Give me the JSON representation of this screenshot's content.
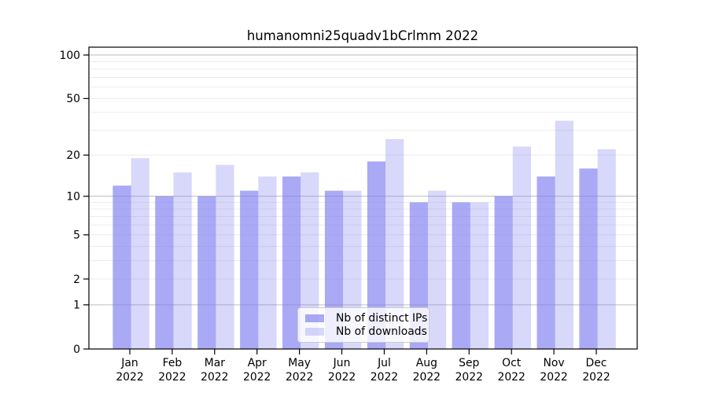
{
  "chart_data": {
    "type": "bar",
    "title": "humanomni25quadv1bCrlmm 2022",
    "categories": [
      "Jan",
      "Feb",
      "Mar",
      "Apr",
      "May",
      "Jun",
      "Jul",
      "Aug",
      "Sep",
      "Oct",
      "Nov",
      "Dec"
    ],
    "year": "2022",
    "series": [
      {
        "name": "Nb of distinct IPs",
        "values": [
          12,
          10,
          10,
          11,
          14,
          11,
          18,
          9,
          9,
          10,
          14,
          16
        ],
        "color": "#7878f0",
        "opacity": 0.64
      },
      {
        "name": "Nb of downloads",
        "values": [
          19,
          15,
          17,
          14,
          15,
          11,
          26,
          11,
          9,
          23,
          35,
          22
        ],
        "color": "#7878f0",
        "opacity": 0.29
      }
    ],
    "y_scale": "log1p",
    "ylim": [
      0,
      100
    ],
    "y_tick_values": [
      0,
      1,
      2,
      5,
      10,
      20,
      50,
      100
    ],
    "y_tick_labels": [
      "0",
      "1",
      "2",
      "5",
      "10",
      "20",
      "50",
      "100"
    ],
    "y_major_gridlines": [
      1,
      10,
      100
    ],
    "y_minor_gridlines": [
      2,
      3,
      4,
      5,
      6,
      7,
      8,
      9,
      20,
      30,
      40,
      50,
      60,
      70,
      80,
      90
    ],
    "grid": true,
    "legend_position": "lower center"
  },
  "colors": {
    "background": "#ffffff",
    "axis": "#000000",
    "grid_major": "#bdbdbd",
    "grid_minor": "#ececec",
    "bar_base": "#7878f0"
  }
}
